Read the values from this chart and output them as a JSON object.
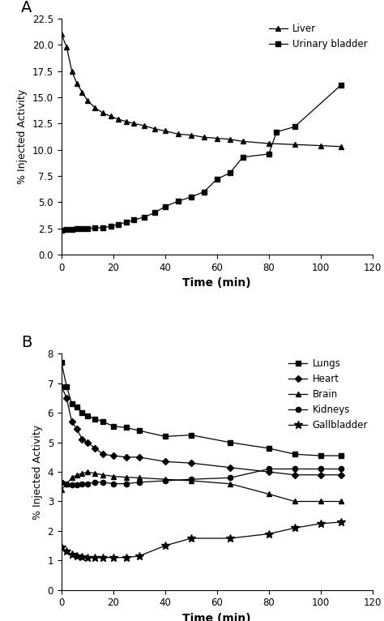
{
  "panel_A": {
    "title": "A",
    "xlabel": "Time (min)",
    "ylabel": "% Injected Activity",
    "xlim": [
      0,
      120
    ],
    "ylim": [
      0,
      22.5
    ],
    "yticks": [
      0,
      2.5,
      5.0,
      7.5,
      10.0,
      12.5,
      15.0,
      17.5,
      20.0,
      22.5
    ],
    "xticks": [
      0,
      20,
      40,
      60,
      80,
      100,
      120
    ],
    "liver": {
      "x": [
        0,
        2,
        4,
        6,
        8,
        10,
        13,
        16,
        19,
        22,
        25,
        28,
        32,
        36,
        40,
        45,
        50,
        55,
        60,
        65,
        70,
        80,
        90,
        100,
        108
      ],
      "y": [
        21.0,
        19.8,
        17.5,
        16.3,
        15.5,
        14.7,
        14.0,
        13.5,
        13.2,
        12.9,
        12.7,
        12.5,
        12.3,
        12.0,
        11.8,
        11.5,
        11.4,
        11.2,
        11.1,
        11.0,
        10.8,
        10.6,
        10.5,
        10.4,
        10.3
      ],
      "label": "Liver",
      "marker": "^",
      "color": "#000000"
    },
    "urinary_bladder": {
      "x": [
        0,
        2,
        4,
        6,
        8,
        10,
        13,
        16,
        19,
        22,
        25,
        28,
        32,
        36,
        40,
        45,
        50,
        55,
        60,
        65,
        70,
        80,
        83,
        90,
        108
      ],
      "y": [
        2.3,
        2.4,
        2.4,
        2.45,
        2.5,
        2.5,
        2.55,
        2.6,
        2.7,
        2.9,
        3.1,
        3.3,
        3.6,
        4.0,
        4.6,
        5.1,
        5.5,
        6.0,
        7.2,
        7.8,
        9.3,
        9.6,
        11.7,
        12.2,
        16.2
      ],
      "label": "Urinary bladder",
      "marker": "s",
      "color": "#000000"
    }
  },
  "panel_B": {
    "title": "B",
    "xlabel": "Time (min)",
    "ylabel": "% Injected Activity",
    "xlim": [
      0,
      120
    ],
    "ylim": [
      0,
      8
    ],
    "yticks": [
      0,
      1,
      2,
      3,
      4,
      5,
      6,
      7,
      8
    ],
    "xticks": [
      0,
      20,
      40,
      60,
      80,
      100,
      120
    ],
    "lungs": {
      "x": [
        0,
        2,
        4,
        6,
        8,
        10,
        13,
        16,
        20,
        25,
        30,
        40,
        50,
        65,
        80,
        90,
        100,
        108
      ],
      "y": [
        7.7,
        6.9,
        6.3,
        6.2,
        6.0,
        5.9,
        5.8,
        5.7,
        5.55,
        5.5,
        5.4,
        5.2,
        5.25,
        5.0,
        4.8,
        4.6,
        4.55,
        4.55
      ],
      "label": "Lungs",
      "marker": "s",
      "color": "#000000"
    },
    "heart": {
      "x": [
        0,
        2,
        4,
        6,
        8,
        10,
        13,
        16,
        20,
        25,
        30,
        40,
        50,
        65,
        80,
        90,
        100,
        108
      ],
      "y": [
        6.9,
        6.5,
        5.7,
        5.45,
        5.1,
        5.0,
        4.8,
        4.6,
        4.55,
        4.5,
        4.5,
        4.35,
        4.3,
        4.15,
        4.0,
        3.9,
        3.9,
        3.9
      ],
      "label": "Heart",
      "marker": "D",
      "color": "#000000"
    },
    "brain": {
      "x": [
        0,
        2,
        4,
        6,
        8,
        10,
        13,
        16,
        20,
        25,
        30,
        40,
        50,
        65,
        80,
        90,
        100,
        108
      ],
      "y": [
        3.4,
        3.6,
        3.8,
        3.9,
        3.95,
        4.0,
        3.95,
        3.9,
        3.85,
        3.82,
        3.8,
        3.75,
        3.7,
        3.6,
        3.25,
        3.0,
        3.0,
        3.0
      ],
      "label": "Brain",
      "marker": "^",
      "color": "#000000"
    },
    "kidneys": {
      "x": [
        0,
        2,
        4,
        6,
        8,
        10,
        13,
        16,
        20,
        25,
        30,
        40,
        50,
        65,
        80,
        90,
        100,
        108
      ],
      "y": [
        3.65,
        3.6,
        3.55,
        3.55,
        3.6,
        3.6,
        3.65,
        3.65,
        3.6,
        3.6,
        3.65,
        3.7,
        3.75,
        3.8,
        4.1,
        4.1,
        4.1,
        4.1
      ],
      "label": "Kidneys",
      "marker": "o",
      "color": "#000000"
    },
    "gallbladder": {
      "x": [
        0,
        2,
        4,
        6,
        8,
        10,
        13,
        16,
        20,
        25,
        30,
        40,
        50,
        65,
        80,
        90,
        100,
        108
      ],
      "y": [
        1.45,
        1.3,
        1.2,
        1.15,
        1.12,
        1.1,
        1.1,
        1.1,
        1.1,
        1.1,
        1.15,
        1.5,
        1.75,
        1.75,
        1.9,
        2.1,
        2.25,
        2.3
      ],
      "label": "Gallbladder",
      "marker": "*",
      "color": "#000000"
    }
  },
  "fig_width": 4.74,
  "fig_height": 7.66,
  "dpi": 100
}
